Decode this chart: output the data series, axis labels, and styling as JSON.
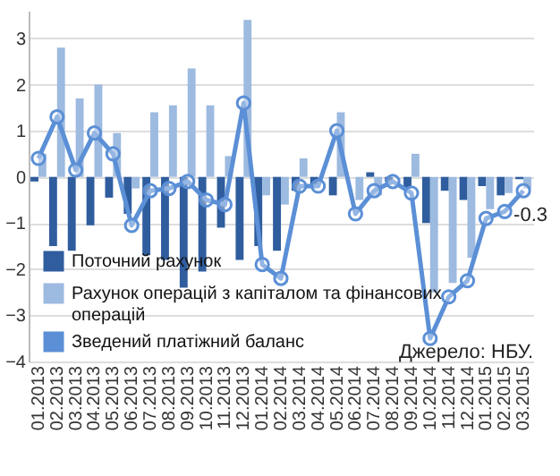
{
  "chart_data": {
    "type": "bar",
    "categories": [
      "01.2013",
      "02.2013",
      "03.2013",
      "04.2013",
      "05.2013",
      "06.2013",
      "07.2013",
      "08.2013",
      "09.2013",
      "10.2013",
      "11.2013",
      "12.2013",
      "01.2014",
      "02.2014",
      "03.2014",
      "04.2014",
      "05.2014",
      "06.2014",
      "07.2014",
      "08.2014",
      "09.2014",
      "10.2014",
      "11.2014",
      "12.2014",
      "01.2015",
      "02.2015",
      "03.2015"
    ],
    "series": [
      {
        "name": "Поточний рахунок",
        "color": "#2f5d9e",
        "values": [
          -0.1,
          -1.5,
          -1.6,
          -1.05,
          -0.45,
          -0.8,
          -1.7,
          -1.8,
          -2.4,
          -2.05,
          -1.1,
          -1.8,
          -1.5,
          -1.6,
          -0.3,
          -0.2,
          -0.4,
          null,
          0.1,
          -0.1,
          -0.25,
          -1.0,
          -0.3,
          -0.5,
          -0.2,
          -0.4,
          -0.05
        ]
      },
      {
        "name": "Рахунок операцій з капіталом та фінансових операцій",
        "color": "#9dbae0",
        "values": [
          0.5,
          2.8,
          1.7,
          2.0,
          0.95,
          -0.25,
          1.4,
          1.55,
          2.35,
          1.55,
          0.45,
          3.4,
          -0.4,
          -0.6,
          0.4,
          0.0,
          1.4,
          -0.5,
          -0.4,
          0.0,
          0.5,
          -2.5,
          -2.3,
          -1.75,
          -0.7,
          -0.35,
          -0.25
        ]
      },
      {
        "name": "Зведений платіжний баланс",
        "type": "line",
        "color": "#5b8fd6",
        "marker": "circle",
        "line_style": "solid",
        "values": [
          0.4,
          1.3,
          0.15,
          0.95,
          0.5,
          -1.05,
          -0.3,
          -0.25,
          -0.1,
          -0.5,
          -0.6,
          1.6,
          -1.9,
          -2.2,
          -0.2,
          -0.2,
          1.0,
          -0.8,
          -0.3,
          -0.1,
          -0.35,
          -3.5,
          -2.6,
          -2.25,
          -0.9,
          -0.75,
          -0.3
        ]
      }
    ],
    "ylim": [
      -4,
      3.6
    ],
    "yticks": [
      -4,
      -3,
      -2,
      -1,
      0,
      1,
      2,
      3
    ],
    "grid": "y",
    "legend": "bottom left",
    "annotations": [
      {
        "text": "-0.3",
        "x": "03.2015",
        "y": -0.3
      },
      "Джерело: НБУ."
    ]
  }
}
